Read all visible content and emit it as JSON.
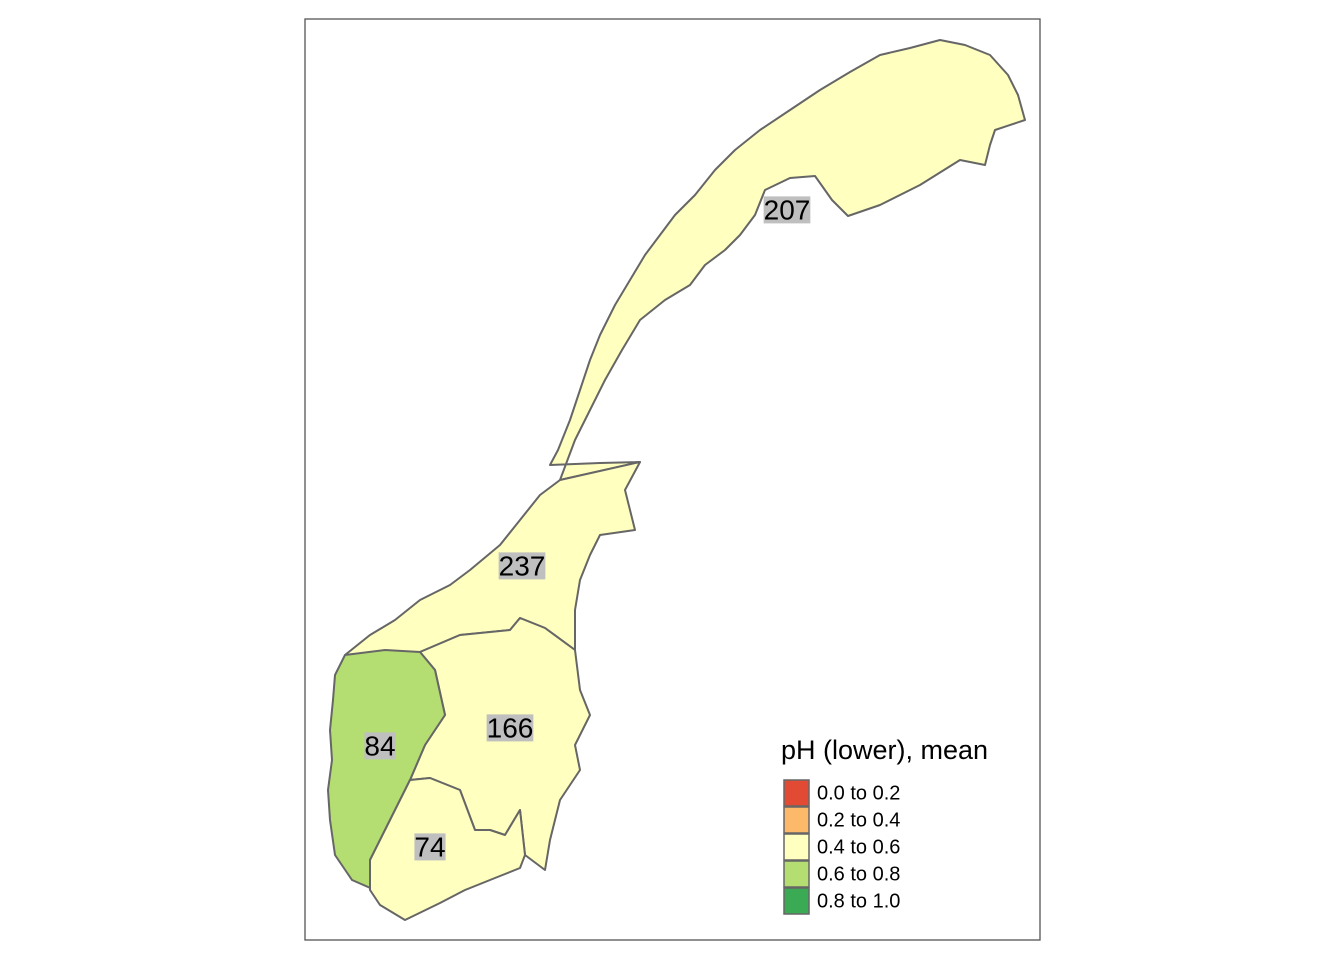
{
  "map": {
    "regions": [
      {
        "label": 207,
        "fill": "#ffffbf"
      },
      {
        "label": 237,
        "fill": "#ffffbf"
      },
      {
        "label": 166,
        "fill": "#ffffbf"
      },
      {
        "label": 84,
        "fill": "#b5de72"
      },
      {
        "label": 74,
        "fill": "#ffffbf"
      }
    ],
    "legend": {
      "title": "pH (lower), mean",
      "items": [
        {
          "label": "0.0 to 0.2",
          "color": "#e34a33"
        },
        {
          "label": "0.2 to 0.4",
          "color": "#fdb96a"
        },
        {
          "label": "0.4 to 0.6",
          "color": "#ffffbf"
        },
        {
          "label": "0.6 to 0.8",
          "color": "#b5de72"
        },
        {
          "label": "0.8 to 1.0",
          "color": "#3aaa55"
        }
      ]
    }
  }
}
